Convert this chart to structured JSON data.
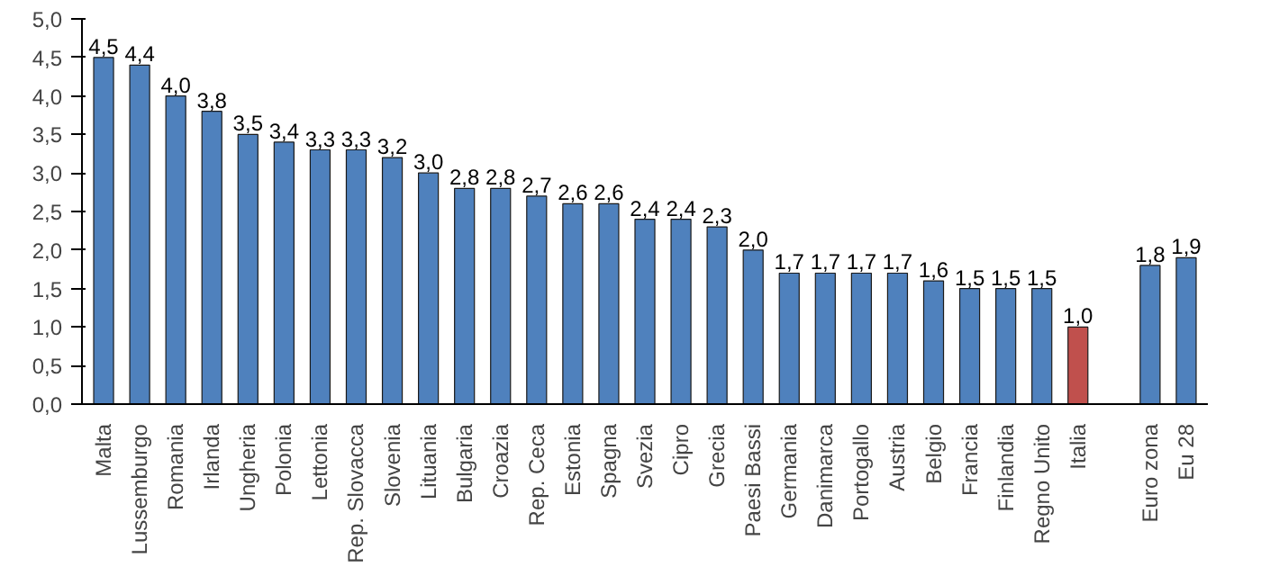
{
  "chart_data": {
    "type": "bar",
    "categories": [
      "Malta",
      "Lussemburgo",
      "Romania",
      "Irlanda",
      "Ungheria",
      "Polonia",
      "Lettonia",
      "Rep. Slovacca",
      "Slovenia",
      "Lituania",
      "Bulgaria",
      "Croazia",
      "Rep. Ceca",
      "Estonia",
      "Spagna",
      "Svezia",
      "Cipro",
      "Grecia",
      "Paesi Bassi",
      "Germania",
      "Danimarca",
      "Portogallo",
      "Austria",
      "Belgio",
      "Francia",
      "Finlandia",
      "Regno Unito",
      "Italia",
      null,
      "Euro zona",
      "Eu 28"
    ],
    "values": [
      4.5,
      4.4,
      4.0,
      3.8,
      3.5,
      3.4,
      3.3,
      3.3,
      3.2,
      3.0,
      2.8,
      2.8,
      2.7,
      2.6,
      2.6,
      2.4,
      2.4,
      2.3,
      2.0,
      1.7,
      1.7,
      1.7,
      1.7,
      1.6,
      1.5,
      1.5,
      1.5,
      1.0,
      null,
      1.8,
      1.9
    ],
    "value_labels": [
      "4,5",
      "4,4",
      "4,0",
      "3,8",
      "3,5",
      "3,4",
      "3,3",
      "3,3",
      "3,2",
      "3,0",
      "2,8",
      "2,8",
      "2,7",
      "2,6",
      "2,6",
      "2,4",
      "2,4",
      "2,3",
      "2,0",
      "1,7",
      "1,7",
      "1,7",
      "1,7",
      "1,6",
      "1,5",
      "1,5",
      "1,5",
      "1,0",
      null,
      "1,8",
      "1,9"
    ],
    "colors": [
      "#4f81bd",
      "#4f81bd",
      "#4f81bd",
      "#4f81bd",
      "#4f81bd",
      "#4f81bd",
      "#4f81bd",
      "#4f81bd",
      "#4f81bd",
      "#4f81bd",
      "#4f81bd",
      "#4f81bd",
      "#4f81bd",
      "#4f81bd",
      "#4f81bd",
      "#4f81bd",
      "#4f81bd",
      "#4f81bd",
      "#4f81bd",
      "#4f81bd",
      "#4f81bd",
      "#4f81bd",
      "#4f81bd",
      "#4f81bd",
      "#4f81bd",
      "#4f81bd",
      "#4f81bd",
      "#c0504d",
      null,
      "#4f81bd",
      "#4f81bd"
    ],
    "ylim": [
      0,
      5
    ],
    "yticks": [
      {
        "value": 0,
        "label": "0,0"
      },
      {
        "value": 0.5,
        "label": "0,5"
      },
      {
        "value": 1,
        "label": "1,0"
      },
      {
        "value": 1.5,
        "label": "1,5"
      },
      {
        "value": 2,
        "label": "2,0"
      },
      {
        "value": 2.5,
        "label": "2,5"
      },
      {
        "value": 3,
        "label": "3,0"
      },
      {
        "value": 3.5,
        "label": "3,5"
      },
      {
        "value": 4,
        "label": "4,0"
      },
      {
        "value": 4.5,
        "label": "4,5"
      },
      {
        "value": 5,
        "label": "5,0"
      }
    ],
    "grid": false
  }
}
